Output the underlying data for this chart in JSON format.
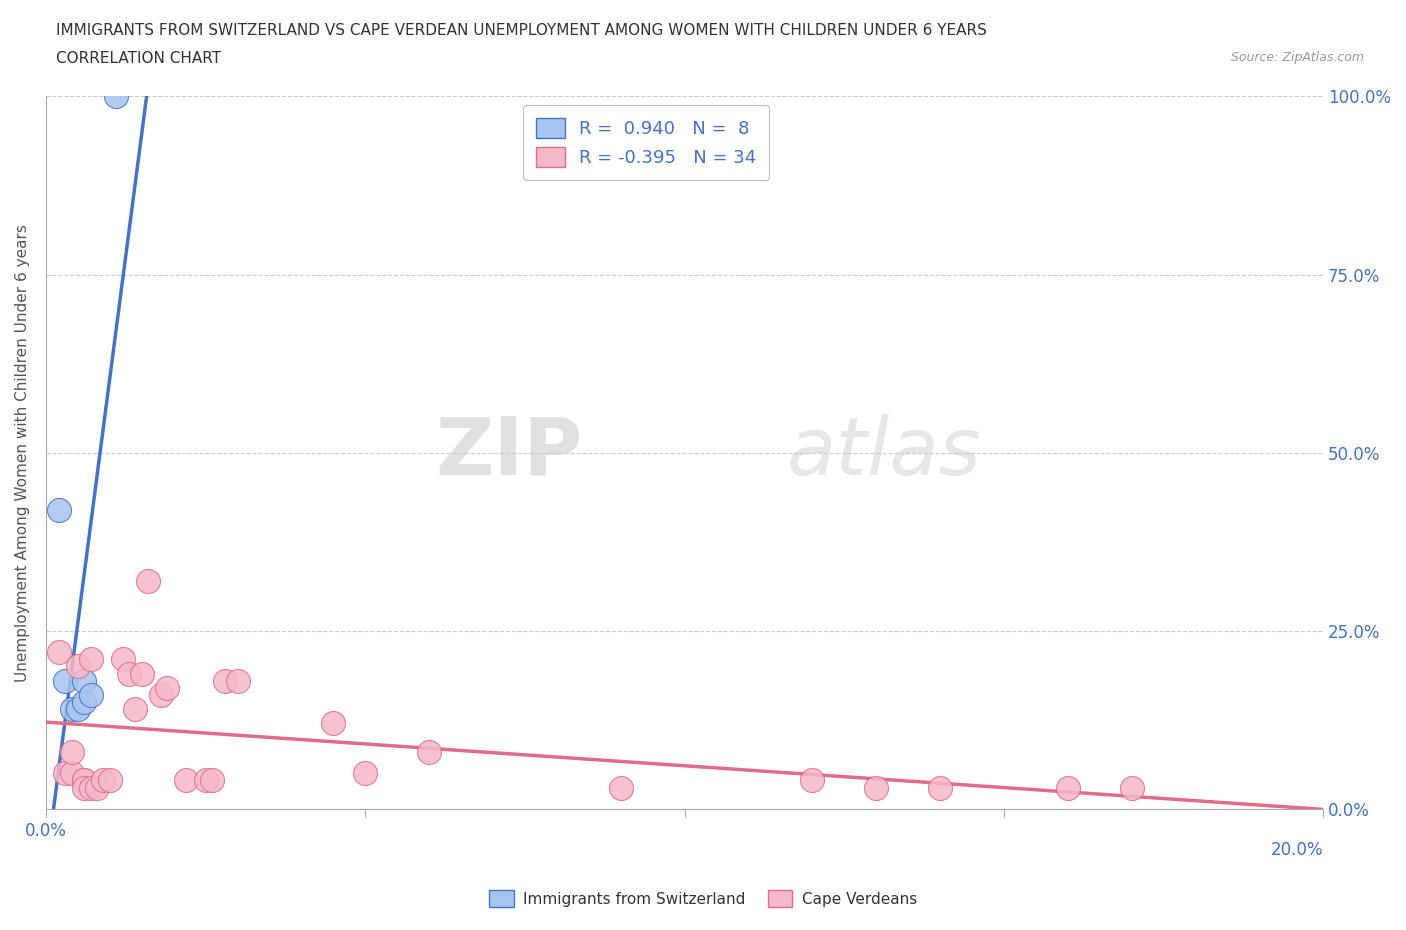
{
  "title_line1": "IMMIGRANTS FROM SWITZERLAND VS CAPE VERDEAN UNEMPLOYMENT AMONG WOMEN WITH CHILDREN UNDER 6 YEARS",
  "title_line2": "CORRELATION CHART",
  "source": "Source: ZipAtlas.com",
  "ylabel": "Unemployment Among Women with Children Under 6 years",
  "xlim": [
    0.0,
    0.2
  ],
  "ylim": [
    0.0,
    1.0
  ],
  "ytick_labels": [
    "0.0%",
    "25.0%",
    "50.0%",
    "75.0%",
    "100.0%"
  ],
  "ytick_values": [
    0.0,
    0.25,
    0.5,
    0.75,
    1.0
  ],
  "xtick_values": [
    0.0,
    0.05,
    0.1,
    0.15,
    0.2
  ],
  "r_switzerland": 0.94,
  "n_switzerland": 8,
  "r_capeverde": -0.395,
  "n_capeverde": 34,
  "blue_color": "#a8c4f0",
  "pink_color": "#f5b8c8",
  "blue_line_color": "#4472c4",
  "pink_line_color": "#e06c8a",
  "watermark_zip": "ZIP",
  "watermark_atlas": "atlas",
  "switzerland_points": [
    [
      0.002,
      0.42
    ],
    [
      0.003,
      0.18
    ],
    [
      0.004,
      0.14
    ],
    [
      0.005,
      0.14
    ],
    [
      0.006,
      0.15
    ],
    [
      0.006,
      0.18
    ],
    [
      0.007,
      0.16
    ],
    [
      0.011,
      1.0
    ]
  ],
  "capeverde_points": [
    [
      0.002,
      0.22
    ],
    [
      0.003,
      0.05
    ],
    [
      0.004,
      0.05
    ],
    [
      0.004,
      0.08
    ],
    [
      0.005,
      0.2
    ],
    [
      0.006,
      0.04
    ],
    [
      0.006,
      0.04
    ],
    [
      0.006,
      0.03
    ],
    [
      0.007,
      0.03
    ],
    [
      0.007,
      0.21
    ],
    [
      0.008,
      0.03
    ],
    [
      0.009,
      0.04
    ],
    [
      0.01,
      0.04
    ],
    [
      0.012,
      0.21
    ],
    [
      0.013,
      0.19
    ],
    [
      0.014,
      0.14
    ],
    [
      0.015,
      0.19
    ],
    [
      0.016,
      0.32
    ],
    [
      0.018,
      0.16
    ],
    [
      0.019,
      0.17
    ],
    [
      0.022,
      0.04
    ],
    [
      0.025,
      0.04
    ],
    [
      0.026,
      0.04
    ],
    [
      0.028,
      0.18
    ],
    [
      0.03,
      0.18
    ],
    [
      0.045,
      0.12
    ],
    [
      0.05,
      0.05
    ],
    [
      0.06,
      0.08
    ],
    [
      0.09,
      0.03
    ],
    [
      0.12,
      0.04
    ],
    [
      0.13,
      0.03
    ],
    [
      0.14,
      0.03
    ],
    [
      0.16,
      0.03
    ],
    [
      0.17,
      0.03
    ]
  ],
  "legend_entries": [
    "Immigrants from Switzerland",
    "Cape Verdeans"
  ],
  "background_color": "#ffffff",
  "grid_color": "#cccccc",
  "tick_color": "#4472c4",
  "axis_color": "#aaaaaa",
  "title_color": "#333333",
  "ylabel_color": "#555555"
}
